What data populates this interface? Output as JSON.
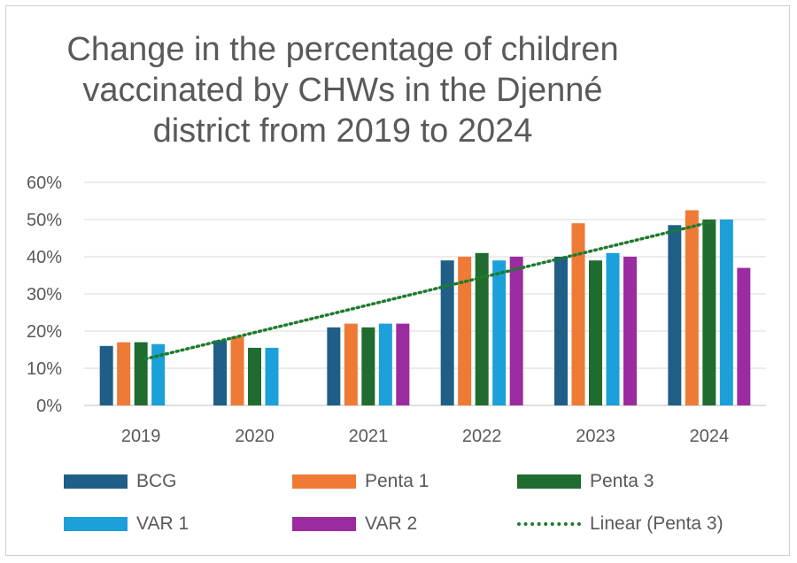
{
  "chart_data": {
    "type": "bar",
    "title": "Change in the percentage of children vaccinated by CHWs in the Djenné district from 2019 to 2024",
    "categories": [
      "2019",
      "2020",
      "2021",
      "2022",
      "2023",
      "2024"
    ],
    "series": [
      {
        "name": "BCG",
        "color": "#1f5f87",
        "values": [
          16,
          17.5,
          21,
          39,
          40,
          48.5
        ]
      },
      {
        "name": "Penta 1",
        "color": "#ee7a35",
        "values": [
          17,
          18.5,
          22,
          40,
          49,
          52.5
        ]
      },
      {
        "name": "Penta 3",
        "color": "#206b2f",
        "values": [
          17,
          15.5,
          21,
          41,
          39,
          50
        ]
      },
      {
        "name": "VAR 1",
        "color": "#1ba0d9",
        "values": [
          16.5,
          15.5,
          22,
          39,
          41,
          50
        ]
      },
      {
        "name": "VAR 2",
        "color": "#9b2ca0",
        "values": [
          null,
          null,
          22,
          40,
          40,
          37
        ]
      }
    ],
    "trendline": {
      "name": "Linear (Penta 3)",
      "color": "#1e7a2e",
      "style": "dotted",
      "start": 12.5,
      "end": 49.5
    },
    "yticks": [
      "0%",
      "10%",
      "20%",
      "30%",
      "40%",
      "50%",
      "60%"
    ],
    "ylim": [
      0,
      60
    ],
    "xlabel": "",
    "ylabel": "",
    "grid": true,
    "legend_position": "bottom"
  }
}
